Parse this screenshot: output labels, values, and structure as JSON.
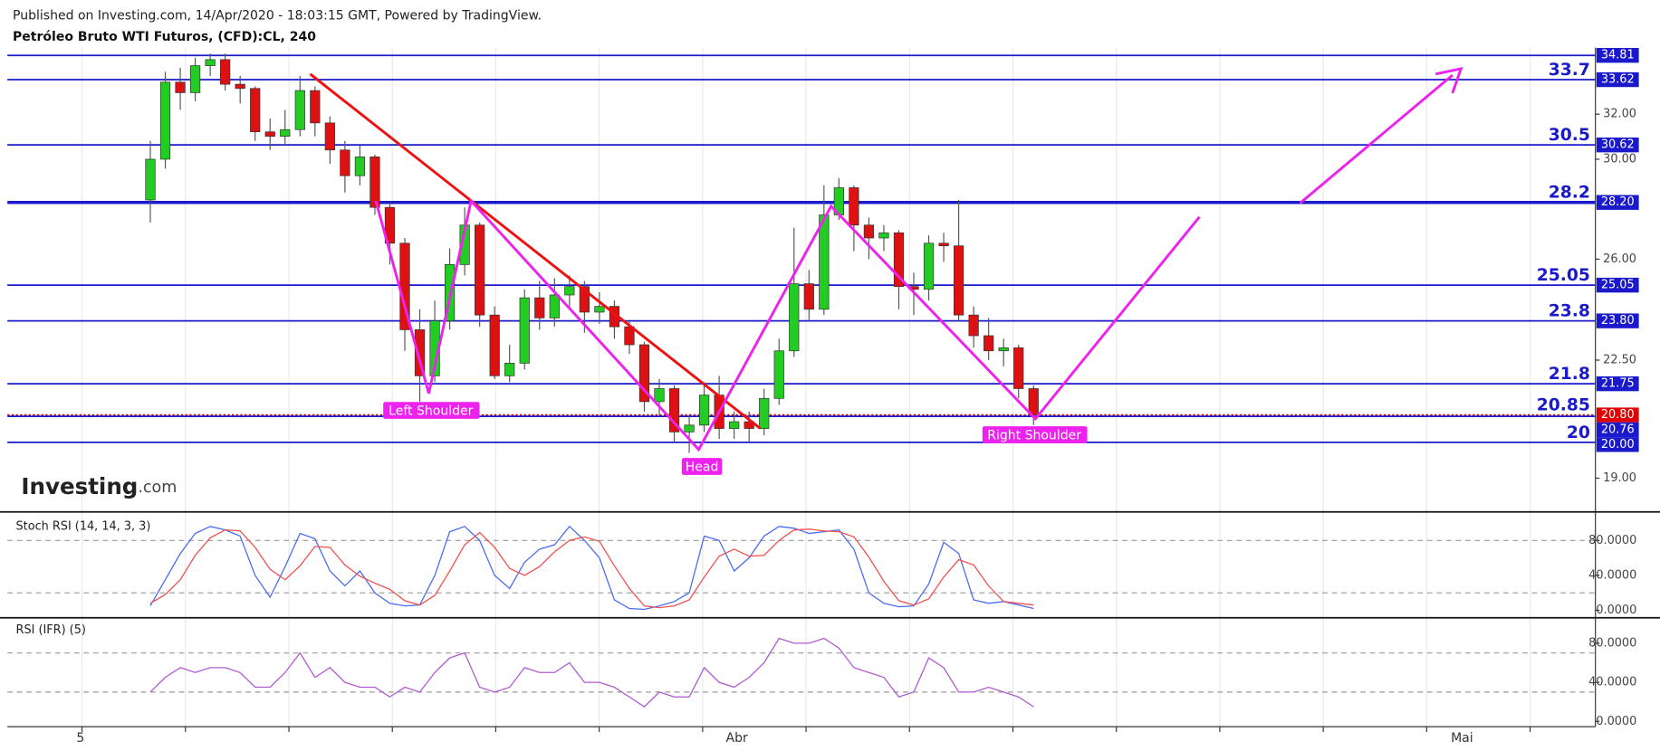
{
  "header": {
    "published": "Published on Investing.com, 14/Apr/2020 - 18:03:15 GMT, Powered by TradingView.",
    "symbol": "Petróleo Bruto WTI Futuros, (CFD):CL, 240"
  },
  "logo": {
    "main": "Investing",
    "suffix": ".com"
  },
  "chart_data": [
    {
      "type": "candlestick",
      "log_scale": true,
      "ylim": [
        18.13,
        35.2
      ],
      "yticks": [
        {
          "value": 32,
          "label": "32.00"
        },
        {
          "value": 30,
          "label": "30.00"
        },
        {
          "value": 26,
          "label": "26.00"
        },
        {
          "value": 22.5,
          "label": "22.50"
        },
        {
          "value": 19,
          "label": "19.00"
        }
      ],
      "up_color": "#22cc22",
      "down_color": "#dd1111",
      "level_color": "#1a1acc",
      "x_labels": [
        "5",
        "Abr",
        "Mai"
      ],
      "annotations": [
        "Left Shoulder",
        "Head",
        "Right Shoulder"
      ],
      "levels": [
        {
          "value": 34.81
        },
        {
          "value": 33.62,
          "note": "33.7"
        },
        {
          "value": 30.62,
          "note": "30.5"
        },
        {
          "value": 28.2,
          "label": "28.20",
          "note": "28.2",
          "width": 3
        },
        {
          "value": 25.05,
          "note": "25.05"
        },
        {
          "value": 23.8,
          "label": "23.80",
          "note": "23.8"
        },
        {
          "value": 21.75,
          "note": "21.8"
        },
        {
          "value": 20.8,
          "label": "20.80",
          "note": "20.85",
          "color": "#e00000",
          "dashed": true
        },
        {
          "value": 20.76
        },
        {
          "value": 20,
          "label": "20.00",
          "note": "20"
        }
      ],
      "ohlc": [
        [
          28.3,
          30.8,
          27.4,
          30.0
        ],
        [
          30.0,
          34.0,
          29.6,
          33.5
        ],
        [
          33.5,
          34.2,
          32.2,
          33.0
        ],
        [
          33.0,
          34.7,
          32.6,
          34.3
        ],
        [
          34.3,
          34.9,
          33.8,
          34.6
        ],
        [
          34.6,
          34.9,
          33.1,
          33.4
        ],
        [
          33.4,
          33.8,
          32.5,
          33.2
        ],
        [
          33.2,
          33.3,
          30.8,
          31.2
        ],
        [
          31.2,
          31.8,
          30.4,
          31.0
        ],
        [
          31.0,
          32.2,
          30.6,
          31.3
        ],
        [
          31.3,
          33.8,
          31.0,
          33.1
        ],
        [
          33.1,
          33.3,
          31.0,
          31.6
        ],
        [
          31.6,
          31.9,
          29.8,
          30.4
        ],
        [
          30.4,
          30.8,
          28.6,
          29.3
        ],
        [
          29.3,
          30.6,
          28.9,
          30.1
        ],
        [
          30.1,
          30.2,
          27.7,
          28.0
        ],
        [
          28.0,
          28.2,
          25.8,
          26.6
        ],
        [
          26.6,
          26.8,
          22.8,
          23.5
        ],
        [
          23.5,
          24.2,
          21.2,
          22.0
        ],
        [
          22.0,
          24.5,
          21.8,
          23.8
        ],
        [
          23.8,
          26.4,
          23.5,
          25.8
        ],
        [
          25.8,
          28.0,
          25.4,
          27.3
        ],
        [
          27.3,
          27.4,
          23.6,
          24.0
        ],
        [
          24.0,
          24.3,
          21.9,
          22.0
        ],
        [
          22.0,
          23.0,
          21.8,
          22.4
        ],
        [
          22.4,
          24.9,
          22.2,
          24.6
        ],
        [
          24.6,
          25.2,
          23.5,
          23.9
        ],
        [
          23.9,
          25.3,
          23.6,
          24.7
        ],
        [
          24.7,
          25.4,
          24.2,
          25.0
        ],
        [
          25.0,
          25.2,
          23.4,
          24.1
        ],
        [
          24.1,
          24.8,
          23.7,
          24.3
        ],
        [
          24.3,
          24.5,
          23.2,
          23.6
        ],
        [
          23.6,
          23.8,
          22.7,
          23.0
        ],
        [
          23.0,
          23.1,
          20.9,
          21.2
        ],
        [
          21.2,
          21.9,
          20.8,
          21.6
        ],
        [
          21.6,
          21.7,
          20.0,
          20.3
        ],
        [
          20.3,
          20.8,
          19.7,
          20.5
        ],
        [
          20.5,
          21.8,
          20.3,
          21.4
        ],
        [
          21.4,
          22.0,
          20.1,
          20.4
        ],
        [
          20.4,
          20.9,
          20.1,
          20.6
        ],
        [
          20.6,
          20.9,
          20.0,
          20.4
        ],
        [
          20.4,
          21.6,
          20.2,
          21.3
        ],
        [
          21.3,
          23.2,
          21.1,
          22.8
        ],
        [
          22.8,
          27.2,
          22.6,
          25.1
        ],
        [
          25.1,
          25.6,
          23.8,
          24.2
        ],
        [
          24.2,
          28.9,
          24.0,
          27.7
        ],
        [
          27.7,
          29.2,
          27.5,
          28.8
        ],
        [
          28.8,
          28.9,
          26.3,
          27.3
        ],
        [
          27.3,
          27.6,
          26.0,
          26.8
        ],
        [
          26.8,
          27.3,
          26.3,
          27.0
        ],
        [
          27.0,
          27.1,
          24.2,
          25.0
        ],
        [
          25.0,
          25.5,
          24.0,
          24.9
        ],
        [
          24.9,
          26.9,
          24.5,
          26.6
        ],
        [
          26.6,
          27.0,
          25.9,
          26.5
        ],
        [
          26.5,
          28.3,
          23.8,
          24.0
        ],
        [
          24.0,
          24.3,
          22.9,
          23.3
        ],
        [
          23.3,
          23.9,
          22.5,
          22.8
        ],
        [
          22.8,
          23.2,
          22.3,
          22.9
        ],
        [
          22.9,
          23.0,
          21.3,
          21.6
        ],
        [
          21.6,
          21.7,
          20.5,
          20.8
        ]
      ]
    },
    {
      "type": "line",
      "title": "Stoch RSI (14, 14, 3, 3)",
      "ylim": [
        -7.3,
        109
      ],
      "yticks": [
        {
          "value": 0,
          "label": "0.0000"
        },
        {
          "value": 40,
          "label": "40.0000"
        },
        {
          "value": 80,
          "label": "80.0000"
        }
      ],
      "bands": [
        20,
        80
      ],
      "series": [
        {
          "color": "#4a6cf0",
          "values": [
            5,
            35,
            65,
            88,
            96,
            92,
            85,
            40,
            15,
            50,
            88,
            82,
            45,
            28,
            45,
            20,
            8,
            5,
            6,
            40,
            90,
            96,
            80,
            40,
            25,
            55,
            70,
            75,
            96,
            80,
            60,
            12,
            2,
            1,
            5,
            10,
            20,
            85,
            80,
            45,
            60,
            85,
            96,
            94,
            88,
            90,
            92,
            70,
            20,
            8,
            4,
            5,
            30,
            78,
            65,
            12,
            8,
            10,
            6,
            2
          ]
        },
        {
          "color": "#f05050",
          "values": [
            8,
            18,
            35,
            63,
            83,
            92,
            91,
            72,
            47,
            35,
            51,
            73,
            72,
            52,
            39,
            31,
            24,
            11,
            6,
            17,
            45,
            75,
            89,
            72,
            48,
            40,
            50,
            67,
            80,
            84,
            79,
            51,
            25,
            5,
            3,
            5,
            12,
            38,
            62,
            70,
            62,
            63,
            80,
            92,
            93,
            91,
            90,
            84,
            61,
            33,
            11,
            6,
            13,
            38,
            58,
            52,
            28,
            10,
            8,
            6
          ]
        }
      ]
    },
    {
      "type": "line",
      "title": "RSI (IFR) (5)",
      "ylim": [
        -5.4,
        105
      ],
      "yticks": [
        {
          "value": 0,
          "label": "0.0000"
        },
        {
          "value": 40,
          "label": "40.0000"
        },
        {
          "value": 80,
          "label": "80.0000"
        }
      ],
      "bands": [
        30,
        70
      ],
      "series": [
        {
          "color": "#b05ad0",
          "values": [
            30,
            45,
            55,
            50,
            55,
            55,
            50,
            35,
            35,
            50,
            70,
            45,
            55,
            40,
            35,
            35,
            25,
            35,
            30,
            50,
            65,
            70,
            35,
            30,
            35,
            55,
            50,
            50,
            60,
            40,
            40,
            35,
            25,
            15,
            30,
            25,
            25,
            55,
            40,
            35,
            45,
            60,
            85,
            80,
            80,
            85,
            75,
            55,
            50,
            45,
            25,
            30,
            65,
            55,
            30,
            30,
            35,
            30,
            25,
            15
          ]
        }
      ]
    }
  ]
}
